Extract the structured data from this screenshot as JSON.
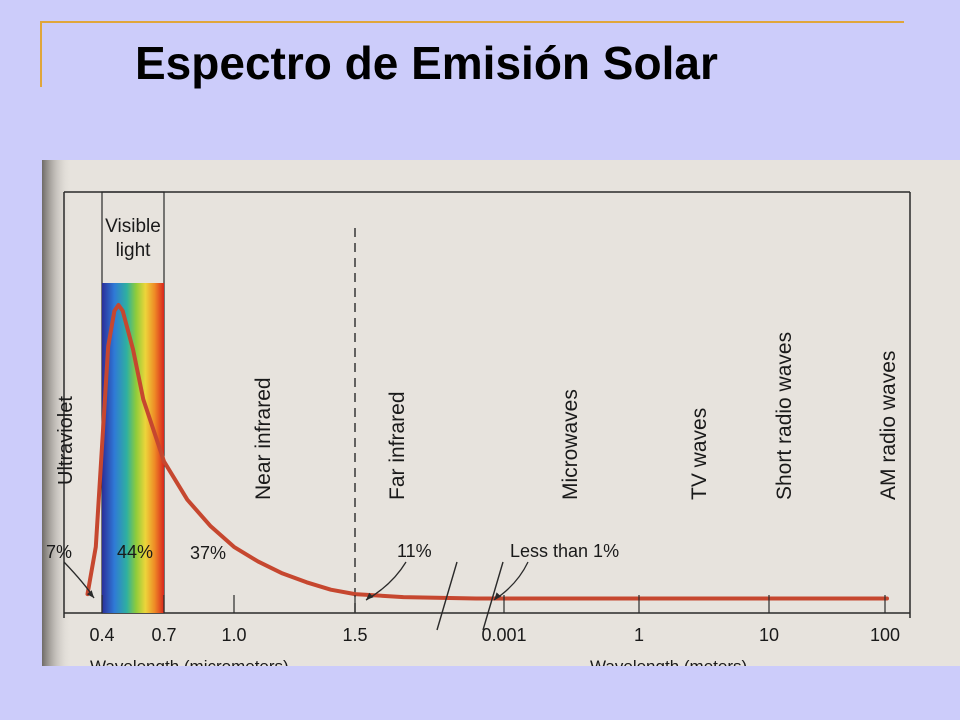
{
  "slide": {
    "title": "Espectro de Emisión Solar"
  },
  "colors": {
    "background": "#ccccfa",
    "accent": "#e0a63a",
    "curve": "#c6472f",
    "paper": "#e7e3dd"
  },
  "chart_data": {
    "type": "line",
    "title": "",
    "legend": "none",
    "grid": false,
    "x_axis_segments": [
      {
        "unit_label": "Wavelength (micrometers)",
        "ticks": [
          "0.4",
          "0.7",
          "1.0",
          "1.5"
        ]
      },
      {
        "unit_label": "Wavelength (meters)",
        "ticks": [
          "0.001",
          "1",
          "10",
          "100"
        ]
      }
    ],
    "regions": [
      {
        "label": "Ultraviolet",
        "percent": "7%"
      },
      {
        "label": "Visible light",
        "percent": "44%"
      },
      {
        "label": "Near infrared",
        "percent": "37%"
      },
      {
        "label": "Far infrared",
        "percent": "11%"
      },
      {
        "label": "Microwaves"
      },
      {
        "label": "TV waves"
      },
      {
        "label": "Short radio waves"
      },
      {
        "label": "AM radio waves"
      }
    ],
    "annotation": "Less than 1%",
    "series": [
      {
        "x": [
          0.33,
          0.37,
          0.4,
          0.43,
          0.46,
          0.48,
          0.5,
          0.55,
          0.6,
          0.7,
          0.8,
          0.9,
          1.0,
          1.1,
          1.2,
          1.3,
          1.4,
          1.5,
          1.7,
          2.0
        ],
        "y": [
          0.02,
          0.18,
          0.52,
          0.86,
          0.98,
          1.0,
          0.98,
          0.85,
          0.68,
          0.47,
          0.34,
          0.25,
          0.18,
          0.13,
          0.09,
          0.06,
          0.035,
          0.02,
          0.01,
          0.005
        ]
      }
    ]
  }
}
